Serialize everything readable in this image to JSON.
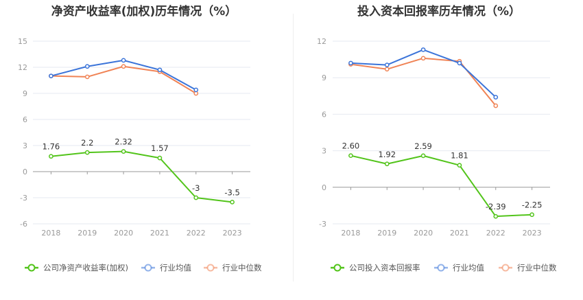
{
  "chart_data": [
    {
      "type": "line",
      "title": "净资产收益率(加权)历年情况（%）",
      "categories": [
        "2018",
        "2019",
        "2020",
        "2021",
        "2022",
        "2023"
      ],
      "ylim": [
        -6,
        15
      ],
      "yticks": [
        "15",
        "12",
        "9",
        "6",
        "3",
        "0",
        "-3",
        "-6"
      ],
      "grid": true,
      "legend_position": "bottom",
      "series": [
        {
          "name": "公司净资产收益率(加权)",
          "color": "#52c41a",
          "values": [
            1.76,
            2.2,
            2.32,
            1.57,
            -3,
            -3.5
          ],
          "labels": [
            "1.76",
            "2.2",
            "2.32",
            "1.57",
            "-3",
            "-3.5"
          ]
        },
        {
          "name": "行业均值",
          "color": "#3b74d9",
          "values": [
            11.0,
            12.1,
            12.8,
            11.7,
            9.4,
            null
          ]
        },
        {
          "name": "行业中位数",
          "color": "#f08355",
          "values": [
            11.0,
            10.9,
            12.1,
            11.5,
            9.0,
            null
          ]
        }
      ]
    },
    {
      "type": "line",
      "title": "投入资本回报率历年情况（%）",
      "categories": [
        "2018",
        "2019",
        "2020",
        "2021",
        "2022",
        "2023"
      ],
      "ylim": [
        -3,
        12
      ],
      "yticks": [
        "12",
        "9",
        "6",
        "3",
        "0",
        "-3"
      ],
      "grid": true,
      "legend_position": "bottom",
      "series": [
        {
          "name": "公司投入资本回报率",
          "color": "#52c41a",
          "values": [
            2.6,
            1.92,
            2.59,
            1.81,
            -2.39,
            -2.25
          ],
          "labels": [
            "2.60",
            "1.92",
            "2.59",
            "1.81",
            "-2.39",
            "-2.25"
          ]
        },
        {
          "name": "行业均值",
          "color": "#3b74d9",
          "values": [
            10.2,
            10.05,
            11.3,
            10.2,
            7.4,
            null
          ]
        },
        {
          "name": "行业中位数",
          "color": "#f08355",
          "values": [
            10.1,
            9.7,
            10.6,
            10.35,
            6.7,
            null
          ]
        }
      ]
    }
  ]
}
